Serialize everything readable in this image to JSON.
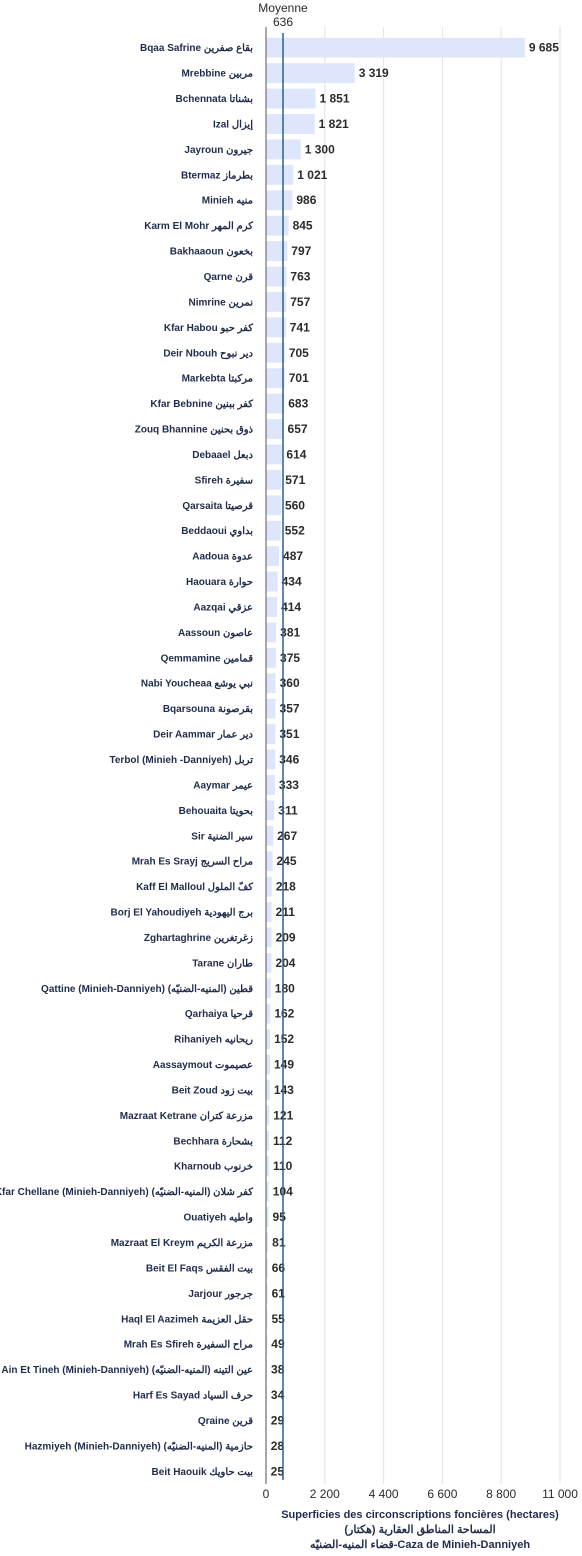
{
  "chart_data": {
    "type": "bar",
    "orientation": "horizontal",
    "categories": [
      "Bqaa Safrine بقاع صفرين",
      "Mrebbine مربين",
      "Bchennata بشناتا",
      "Izal إيزال",
      "Jayroun جيرون",
      "Btermaz بطرماز",
      "Minieh منيه",
      "Karm El Mohr كرم المهر",
      "Bakhaaoun بخعون",
      "Qarne قرن",
      "Nimrine نمرين",
      "Kfar Habou كفر حبو",
      "Deir Nbouh دير نبوح",
      "Markebta مركبتا",
      "Kfar Bebnine كفر ببنين",
      "Zouq Bhannine ذوق بحنين",
      "Debaael دبعل",
      "Sfireh سفيرة",
      "Qarsaita قرصيتا",
      "Beddaoui بداوي",
      "Aadoua عدوة",
      "Haouara حوارة",
      "Aazqai عزقي",
      "Aassoun عاصون",
      "Qemmamine قمامين",
      "Nabi Youcheaa نبي يوشع",
      "Bqarsouna بقرصونة",
      "Deir Aammar دير عمار",
      "Terbol (Minieh -Danniyeh) تربل",
      "Aaymar عيمر",
      "Behouaita بحويتا",
      "Sir سير الضنية",
      "Mrah Es Srayj مراح السريج",
      "Kaff El Malloul كفّ الملول",
      "Borj El Yahoudiyeh برج اليهودية",
      "Zghartaghrine زغرتغرين",
      "Tarane طاران",
      "Qattine (Minieh-Danniyeh) قطين (المنيه-الضنيّه)",
      "Qarhaiya قرحيا",
      "Rihaniyeh ريحانيه",
      "Aassaymout عصيموت",
      "Beit Zoud بيت زود",
      "Mazraat Ketrane مزرعة كتران",
      "Bechhara بشحارة",
      "Kharnoub خرنوب",
      "Kfar Chellane (Minieh-Danniyeh) كفر شلان (المنيه-الضنيّه)",
      "Ouatiyeh واطيه",
      "Mazraat El Kreym مزرعة الكريم",
      "Beit El Faqs بيت الفقس",
      "Jarjour جرجور",
      "Haql El Aazimeh حقل العزيمة",
      "Mrah Es Sfireh مراح السفيرة",
      "Ain Et Tineh (Minieh-Danniyeh) عين التينه (المنيه-الضنيّه)",
      "Harf Es Sayad حرف السياد",
      "Qraine قرين",
      "Hazmiyeh (Minieh-Danniyeh) حازمية (المنيه-الضنيّه)",
      "Beit Haouik بيت حاويك"
    ],
    "values": [
      9685,
      3319,
      1851,
      1821,
      1300,
      1021,
      986,
      845,
      797,
      763,
      757,
      741,
      705,
      701,
      683,
      657,
      614,
      571,
      560,
      552,
      487,
      434,
      414,
      381,
      375,
      360,
      357,
      351,
      346,
      333,
      311,
      267,
      245,
      218,
      211,
      209,
      204,
      180,
      162,
      152,
      149,
      143,
      121,
      112,
      110,
      104,
      95,
      81,
      66,
      61,
      55,
      49,
      38,
      34,
      29,
      28,
      25
    ],
    "value_labels": [
      "9 685",
      "3 319",
      "1 851",
      "1 821",
      "1 300",
      "1 021",
      "986",
      "845",
      "797",
      "763",
      "757",
      "741",
      "705",
      "701",
      "683",
      "657",
      "614",
      "571",
      "560",
      "552",
      "487",
      "434",
      "414",
      "381",
      "375",
      "360",
      "357",
      "351",
      "346",
      "333",
      "311",
      "267",
      "245",
      "218",
      "211",
      "209",
      "204",
      "180",
      "162",
      "152",
      "149",
      "143",
      "121",
      "112",
      "110",
      "104",
      "95",
      "81",
      "66",
      "61",
      "55",
      "49",
      "38",
      "34",
      "29",
      "28",
      "25"
    ],
    "mean": {
      "label": "Moyenne",
      "value": 636,
      "value_label": "636"
    },
    "xlim": [
      0,
      11000
    ],
    "xticks": [
      0,
      2200,
      4400,
      6600,
      8800,
      11000
    ],
    "xtick_labels": [
      "0",
      "2 200",
      "4 400",
      "6 600",
      "8 800",
      "11 000"
    ],
    "xlabel_lines": [
      "Superficies des circonscriptions foncières (hectares)",
      "المساحة المناطق العقارية (هكتار)",
      "قضاء المنيه-الضنيّه-Caza de Minieh-Danniyeh"
    ],
    "grid": true,
    "colors": {
      "bar": "#dde6fb",
      "mean_line": "#2f5f91",
      "grid": "#e3e3e3",
      "label": "#1f2d4a",
      "value": "#2b2b2b"
    }
  }
}
